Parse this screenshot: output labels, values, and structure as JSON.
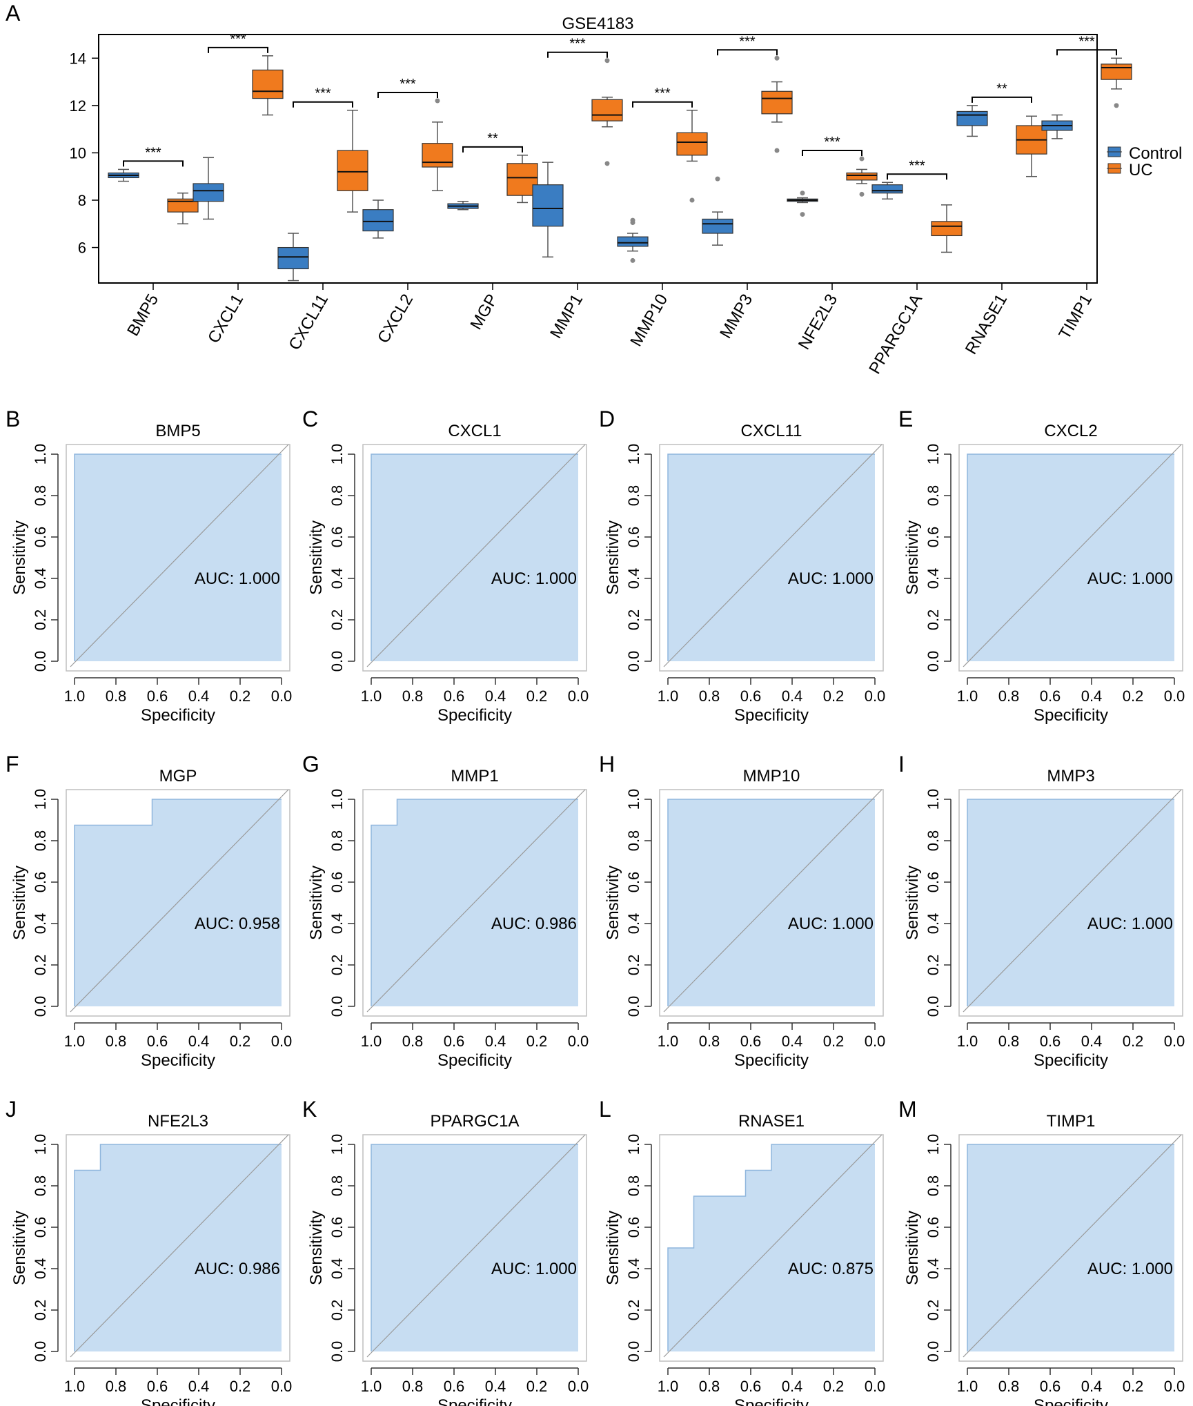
{
  "colors": {
    "control": "#3A7DC2",
    "uc": "#F07A1E",
    "roc_fill": "#C7DDF2",
    "roc_frame": "#BFBFBF",
    "text": "#000000"
  },
  "chart_data": [
    {
      "panel": "A",
      "type": "box",
      "title": "GSE4183",
      "ylim": [
        4.5,
        15
      ],
      "yticks": [
        6,
        8,
        10,
        12,
        14
      ],
      "legend": {
        "position": "right",
        "entries": [
          "Control",
          "UC"
        ]
      },
      "genes": [
        {
          "gene": "BMP5",
          "sig": "***",
          "control": {
            "min": 8.8,
            "q1": 8.95,
            "median": 9.05,
            "q3": 9.15,
            "max": 9.3,
            "outliers": []
          },
          "uc": {
            "min": 7.0,
            "q1": 7.5,
            "median": 7.95,
            "q3": 8.05,
            "max": 8.3,
            "outliers": []
          }
        },
        {
          "gene": "CXCL1",
          "sig": "***",
          "control": {
            "min": 7.2,
            "q1": 7.95,
            "median": 8.4,
            "q3": 8.7,
            "max": 9.8,
            "outliers": []
          },
          "uc": {
            "min": 11.6,
            "q1": 12.3,
            "median": 12.6,
            "q3": 13.5,
            "max": 14.1,
            "outliers": []
          }
        },
        {
          "gene": "CXCL11",
          "sig": "***",
          "control": {
            "min": 4.6,
            "q1": 5.1,
            "median": 5.6,
            "q3": 6.0,
            "max": 6.6,
            "outliers": []
          },
          "uc": {
            "min": 7.5,
            "q1": 8.4,
            "median": 9.2,
            "q3": 10.1,
            "max": 11.8,
            "outliers": []
          }
        },
        {
          "gene": "CXCL2",
          "sig": "***",
          "control": {
            "min": 6.4,
            "q1": 6.7,
            "median": 7.1,
            "q3": 7.6,
            "max": 8.0,
            "outliers": []
          },
          "uc": {
            "min": 8.4,
            "q1": 9.4,
            "median": 9.6,
            "q3": 10.4,
            "max": 11.3,
            "outliers": [
              12.2
            ]
          }
        },
        {
          "gene": "MGP",
          "sig": "**",
          "control": {
            "min": 7.6,
            "q1": 7.65,
            "median": 7.75,
            "q3": 7.85,
            "max": 7.95,
            "outliers": []
          },
          "uc": {
            "min": 7.9,
            "q1": 8.2,
            "median": 8.95,
            "q3": 9.55,
            "max": 9.9,
            "outliers": []
          }
        },
        {
          "gene": "MMP1",
          "sig": "***",
          "control": {
            "min": 5.6,
            "q1": 6.9,
            "median": 7.65,
            "q3": 8.65,
            "max": 9.6,
            "outliers": []
          },
          "uc": {
            "min": 11.1,
            "q1": 11.35,
            "median": 11.6,
            "q3": 12.25,
            "max": 12.35,
            "outliers": [
              13.9,
              9.55
            ]
          }
        },
        {
          "gene": "MMP10",
          "sig": "***",
          "control": {
            "min": 5.85,
            "q1": 6.05,
            "median": 6.2,
            "q3": 6.45,
            "max": 6.6,
            "outliers": [
              7.15,
              7.05,
              5.45
            ]
          },
          "uc": {
            "min": 9.65,
            "q1": 9.9,
            "median": 10.45,
            "q3": 10.85,
            "max": 11.8,
            "outliers": [
              8.0
            ]
          }
        },
        {
          "gene": "MMP3",
          "sig": "***",
          "control": {
            "min": 6.1,
            "q1": 6.6,
            "median": 7.0,
            "q3": 7.2,
            "max": 7.5,
            "outliers": [
              8.9
            ]
          },
          "uc": {
            "min": 11.3,
            "q1": 11.65,
            "median": 12.3,
            "q3": 12.6,
            "max": 13.0,
            "outliers": [
              14.0,
              10.1
            ]
          }
        },
        {
          "gene": "NFE2L3",
          "sig": "***",
          "control": {
            "min": 7.9,
            "q1": 7.95,
            "median": 8.0,
            "q3": 8.05,
            "max": 8.1,
            "outliers": [
              8.3,
              7.4
            ]
          },
          "uc": {
            "min": 8.7,
            "q1": 8.85,
            "median": 9.05,
            "q3": 9.15,
            "max": 9.3,
            "outliers": [
              9.75,
              8.25
            ]
          }
        },
        {
          "gene": "PPARGC1A",
          "sig": "***",
          "control": {
            "min": 8.05,
            "q1": 8.3,
            "median": 8.4,
            "q3": 8.65,
            "max": 8.75,
            "outliers": []
          },
          "uc": {
            "min": 5.8,
            "q1": 6.5,
            "median": 6.9,
            "q3": 7.1,
            "max": 7.8,
            "outliers": []
          }
        },
        {
          "gene": "RNASE1",
          "sig": "**",
          "control": {
            "min": 10.7,
            "q1": 11.15,
            "median": 11.6,
            "q3": 11.75,
            "max": 12.0,
            "outliers": []
          },
          "uc": {
            "min": 9.0,
            "q1": 9.95,
            "median": 10.55,
            "q3": 11.15,
            "max": 11.55,
            "outliers": []
          }
        },
        {
          "gene": "TIMP1",
          "sig": "***",
          "control": {
            "min": 10.6,
            "q1": 10.95,
            "median": 11.15,
            "q3": 11.35,
            "max": 11.6,
            "outliers": []
          },
          "uc": {
            "min": 12.7,
            "q1": 13.1,
            "median": 13.6,
            "q3": 13.75,
            "max": 14.0,
            "outliers": [
              12.0
            ]
          }
        }
      ]
    },
    {
      "type": "roc",
      "xlabel": "Specificity",
      "ylabel": "Sensitivity",
      "xticks": [
        "1.0",
        "0.8",
        "0.6",
        "0.4",
        "0.2",
        "0.0"
      ],
      "yticks": [
        "0.0",
        "0.2",
        "0.4",
        "0.6",
        "0.8",
        "1.0"
      ],
      "panels": [
        {
          "panel": "B",
          "title": "BMP5",
          "auc_label": "AUC: 1.000",
          "auc": 1.0,
          "curve": [
            [
              1,
              0
            ],
            [
              1,
              1
            ],
            [
              0,
              1
            ]
          ]
        },
        {
          "panel": "C",
          "title": "CXCL1",
          "auc_label": "AUC: 1.000",
          "auc": 1.0,
          "curve": [
            [
              1,
              0
            ],
            [
              1,
              1
            ],
            [
              0,
              1
            ]
          ]
        },
        {
          "panel": "D",
          "title": "CXCL11",
          "auc_label": "AUC: 1.000",
          "auc": 1.0,
          "curve": [
            [
              1,
              0
            ],
            [
              1,
              1
            ],
            [
              0,
              1
            ]
          ]
        },
        {
          "panel": "E",
          "title": "CXCL2",
          "auc_label": "AUC: 1.000",
          "auc": 1.0,
          "curve": [
            [
              1,
              0
            ],
            [
              1,
              1
            ],
            [
              0,
              1
            ]
          ]
        },
        {
          "panel": "F",
          "title": "MGP",
          "auc_label": "AUC: 0.958",
          "auc": 0.958,
          "curve": [
            [
              1,
              0
            ],
            [
              1,
              0.875
            ],
            [
              0.625,
              0.875
            ],
            [
              0.625,
              1
            ],
            [
              0,
              1
            ]
          ]
        },
        {
          "panel": "G",
          "title": "MMP1",
          "auc_label": "AUC: 0.986",
          "auc": 0.986,
          "curve": [
            [
              1,
              0
            ],
            [
              1,
              0.875
            ],
            [
              0.875,
              0.875
            ],
            [
              0.875,
              1
            ],
            [
              0,
              1
            ]
          ]
        },
        {
          "panel": "H",
          "title": "MMP10",
          "auc_label": "AUC: 1.000",
          "auc": 1.0,
          "curve": [
            [
              1,
              0
            ],
            [
              1,
              1
            ],
            [
              0,
              1
            ]
          ]
        },
        {
          "panel": "I",
          "title": "MMP3",
          "auc_label": "AUC: 1.000",
          "auc": 1.0,
          "curve": [
            [
              1,
              0
            ],
            [
              1,
              1
            ],
            [
              0,
              1
            ]
          ]
        },
        {
          "panel": "J",
          "title": "NFE2L3",
          "auc_label": "AUC: 0.986",
          "auc": 0.986,
          "curve": [
            [
              1,
              0
            ],
            [
              1,
              0.875
            ],
            [
              0.875,
              0.875
            ],
            [
              0.875,
              1
            ],
            [
              0,
              1
            ]
          ]
        },
        {
          "panel": "K",
          "title": "PPARGC1A",
          "auc_label": "AUC: 1.000",
          "auc": 1.0,
          "curve": [
            [
              1,
              0
            ],
            [
              1,
              1
            ],
            [
              0,
              1
            ]
          ]
        },
        {
          "panel": "L",
          "title": "RNASE1",
          "auc_label": "AUC: 0.875",
          "auc": 0.875,
          "curve": [
            [
              1,
              0
            ],
            [
              1,
              0.5
            ],
            [
              0.875,
              0.5
            ],
            [
              0.875,
              0.75
            ],
            [
              0.625,
              0.75
            ],
            [
              0.625,
              0.875
            ],
            [
              0.5,
              0.875
            ],
            [
              0.5,
              1
            ],
            [
              0,
              1
            ]
          ]
        },
        {
          "panel": "M",
          "title": "TIMP1",
          "auc_label": "AUC: 1.000",
          "auc": 1.0,
          "curve": [
            [
              1,
              0
            ],
            [
              1,
              1
            ],
            [
              0,
              1
            ]
          ]
        }
      ]
    }
  ]
}
